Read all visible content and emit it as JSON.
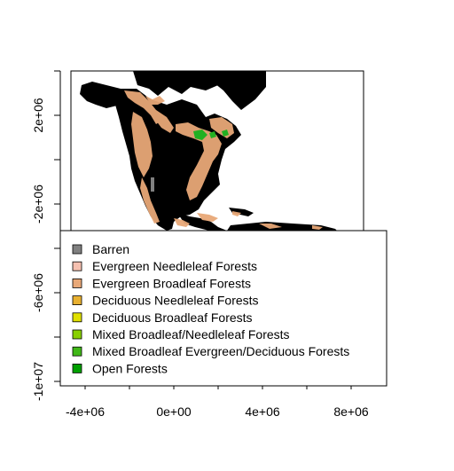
{
  "map": {
    "x_axis": {
      "tick_labels": [
        "-4e+06",
        "0e+00",
        "4e+06",
        "8e+06"
      ],
      "tick_values": [
        -4000000,
        0,
        4000000,
        8000000
      ],
      "minor_tick_values": [
        -2000000,
        2000000,
        6000000
      ]
    },
    "y_axis": {
      "tick_labels": [
        "2e+06",
        "-2e+06",
        "-6e+06",
        "-1e+07"
      ],
      "tick_values": [
        2000000,
        -2000000,
        -6000000,
        -10000000
      ],
      "minor_tick_values": [
        4000000,
        0,
        -4000000,
        -8000000
      ]
    },
    "colors": {
      "background_land": "#000000",
      "evergreen_broadleaf": "#E8A878",
      "mixed_forest": "#22B022"
    },
    "legend": {
      "items": [
        {
          "label": "Barren",
          "color": "#808080"
        },
        {
          "label": "Evergreen Needleleaf Forests",
          "color": "#F5C0B0"
        },
        {
          "label": "Evergreen Broadleaf Forests",
          "color": "#E8A878"
        },
        {
          "label": "Deciduous Needleleaf Forests",
          "color": "#E8B030"
        },
        {
          "label": "Deciduous Broadleaf Forests",
          "color": "#E0E000"
        },
        {
          "label": "Mixed Broadleaf/Needleleaf Forests",
          "color": "#88D000"
        },
        {
          "label": "Mixed Broadleaf Evergreen/Deciduous Forests",
          "color": "#40B818"
        },
        {
          "label": "Open Forests",
          "color": "#00A000"
        }
      ]
    }
  }
}
